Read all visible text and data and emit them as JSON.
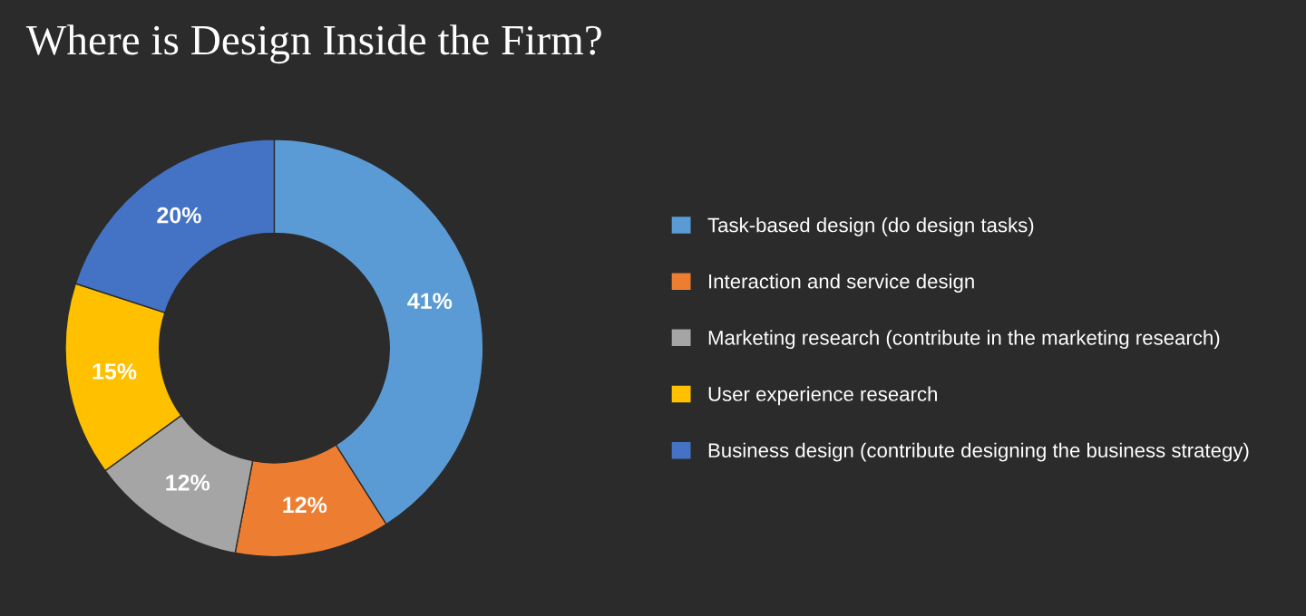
{
  "chart_data": {
    "type": "donut",
    "title": "Where is Design Inside the Firm?",
    "categories": [
      "Task-based design (do design tasks)",
      "Interaction and service design",
      "Marketing research (contribute in the marketing research)",
      "User experience research",
      "Business design (contribute designing the business strategy)"
    ],
    "values": [
      41,
      12,
      12,
      15,
      20
    ],
    "colors": [
      "#5b9bd5",
      "#ed7d31",
      "#a5a5a5",
      "#ffc000",
      "#4472c4"
    ],
    "value_labels": [
      "41%",
      "12%",
      "12%",
      "15%",
      "20%"
    ],
    "legend": "right"
  }
}
